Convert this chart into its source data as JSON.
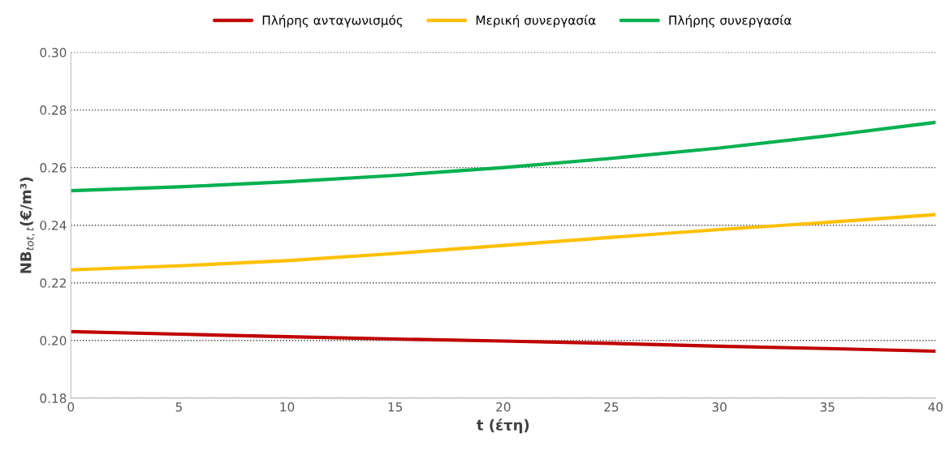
{
  "chart_data": {
    "type": "line",
    "xlabel": "t (έτη)",
    "ylabel": "NB$_{tot,t}$(€/m³)",
    "x": [
      0,
      5,
      10,
      15,
      20,
      25,
      30,
      35,
      40
    ],
    "series": [
      {
        "name": "Πλήρης ανταγωνισμός",
        "color": "#c00000",
        "values": [
          0.2031,
          0.2022,
          0.2013,
          0.2005,
          0.1998,
          0.199,
          0.198,
          0.1972,
          0.1963
        ]
      },
      {
        "name": "Μερική συνεργασία",
        "color": "#ffc000",
        "values": [
          0.2245,
          0.2259,
          0.2277,
          0.2302,
          0.233,
          0.2358,
          0.2385,
          0.241,
          0.2437
        ]
      },
      {
        "name": "Πλήρης συνεργασία",
        "color": "#00b050",
        "values": [
          0.252,
          0.2533,
          0.2551,
          0.2573,
          0.26,
          0.2632,
          0.2668,
          0.271,
          0.2757
        ]
      }
    ],
    "xlim": [
      0,
      40
    ],
    "xticks": [
      0,
      5,
      10,
      15,
      20,
      25,
      30,
      35,
      40
    ],
    "ylim": [
      0.18,
      0.3
    ],
    "yticks": [
      {
        "value": 0.18,
        "label": "0.18"
      },
      {
        "value": 0.2,
        "label": "0.20"
      },
      {
        "value": 0.22,
        "label": "0.22"
      },
      {
        "value": 0.24,
        "label": "0.24"
      },
      {
        "value": 0.26,
        "label": "0.26"
      },
      {
        "value": 0.28,
        "label": "0.28"
      },
      {
        "value": 0.3,
        "label": "0.30"
      }
    ],
    "grid": "y",
    "legend": "top",
    "marker": "none",
    "line_style": "solid"
  }
}
